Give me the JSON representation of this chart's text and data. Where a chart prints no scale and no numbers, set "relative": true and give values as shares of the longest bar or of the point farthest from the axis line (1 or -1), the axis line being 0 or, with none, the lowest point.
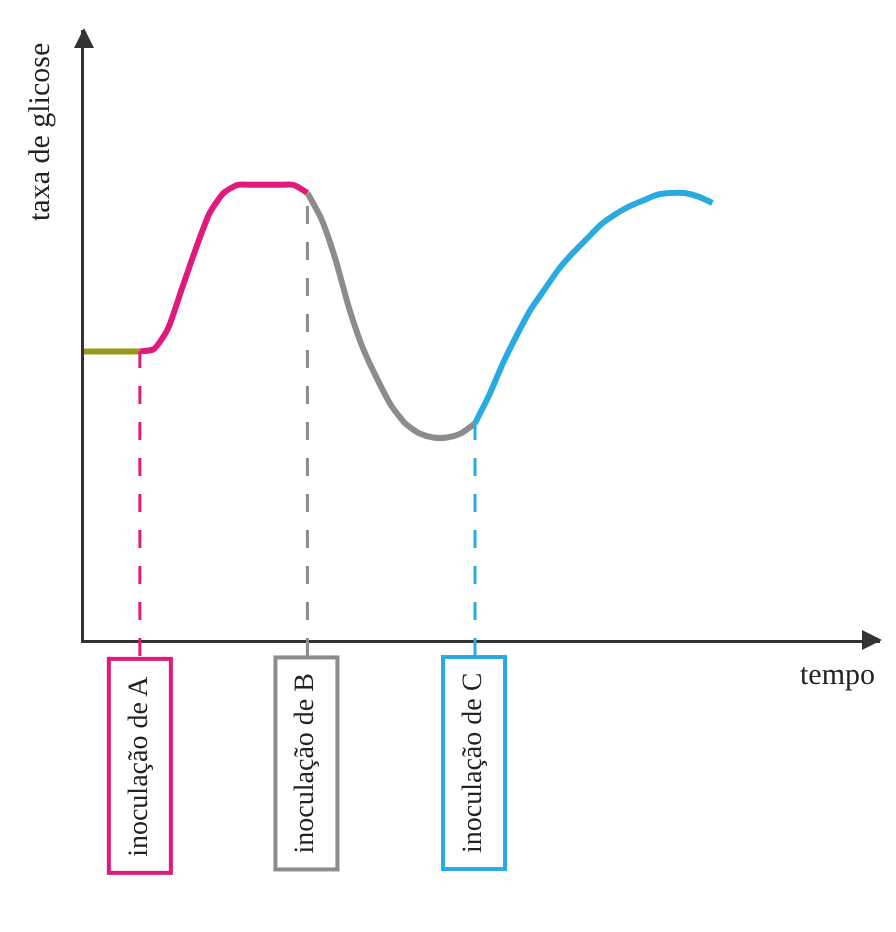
{
  "chart_data": {
    "type": "line",
    "relative": true,
    "xlabel": "tempo",
    "ylabel": "taxa de glicose",
    "marker": "none",
    "line_style": "solid",
    "categories": [
      null,
      null,
      null,
      null,
      null,
      null,
      null,
      null,
      null,
      null,
      null,
      null,
      null,
      null,
      null,
      null,
      null,
      null,
      null,
      null,
      null,
      null,
      null,
      null,
      null,
      null,
      null,
      null,
      null,
      null,
      null,
      null,
      null,
      null,
      null,
      null,
      null,
      null,
      null,
      null,
      null,
      null,
      null,
      null,
      null,
      null,
      null,
      null,
      null,
      null,
      null,
      null,
      null,
      null,
      null,
      null,
      null,
      null
    ],
    "series": [
      {
        "color": "#9a9a1a",
        "values": [
          0.634,
          0.634,
          0.634,
          0.634,
          0.634,
          null,
          null,
          null,
          null,
          null,
          null,
          null,
          null,
          null,
          null,
          null,
          null,
          null,
          null,
          null,
          null,
          null,
          null,
          null,
          null,
          null,
          null,
          null,
          null,
          null,
          null,
          null,
          null,
          null,
          null,
          null,
          null,
          null,
          null,
          null,
          null,
          null,
          null,
          null,
          null,
          null,
          null,
          null,
          null,
          null,
          null,
          null,
          null,
          null,
          null,
          null,
          null,
          null
        ]
      },
      {
        "color": "#e0197d",
        "values": [
          null,
          null,
          null,
          null,
          0.634,
          0.639,
          0.683,
          0.771,
          0.859,
          0.938,
          0.982,
          1,
          1,
          1,
          1,
          1,
          0.982,
          null,
          null,
          null,
          null,
          null,
          null,
          null,
          null,
          null,
          null,
          null,
          null,
          null,
          null,
          null,
          null,
          null,
          null,
          null,
          null,
          null,
          null,
          null,
          null,
          null,
          null,
          null,
          null,
          null,
          null,
          null,
          null,
          null,
          null,
          null,
          null,
          null,
          null,
          null,
          null,
          null
        ]
      },
      {
        "color": "#8c8c8c",
        "values": [
          null,
          null,
          null,
          null,
          null,
          null,
          null,
          null,
          null,
          null,
          null,
          null,
          null,
          null,
          null,
          null,
          0.982,
          0.925,
          0.837,
          0.727,
          0.639,
          0.573,
          0.515,
          0.476,
          0.454,
          0.445,
          0.445,
          0.454,
          0.476,
          null,
          null,
          null,
          null,
          null,
          null,
          null,
          null,
          null,
          null,
          null,
          null,
          null,
          null,
          null,
          null,
          null,
          null,
          null,
          null,
          null,
          null,
          null,
          null,
          null,
          null,
          null,
          null,
          null
        ]
      },
      {
        "color": "#29abe2",
        "values": [
          null,
          null,
          null,
          null,
          null,
          null,
          null,
          null,
          null,
          null,
          null,
          null,
          null,
          null,
          null,
          null,
          null,
          null,
          null,
          null,
          null,
          null,
          null,
          null,
          null,
          null,
          null,
          null,
          0.476,
          0.537,
          0.608,
          0.67,
          0.727,
          0.771,
          0.815,
          0.85,
          0.881,
          0.912,
          0.934,
          0.952,
          0.965,
          0.978,
          0.982,
          0.982,
          0.974,
          0.96,
          null,
          null,
          null,
          null,
          null,
          null,
          null,
          null,
          null,
          null,
          null,
          null
        ]
      }
    ],
    "annotations": [
      "inoculação de A",
      "inoculação de B",
      "inoculação de C"
    ]
  }
}
